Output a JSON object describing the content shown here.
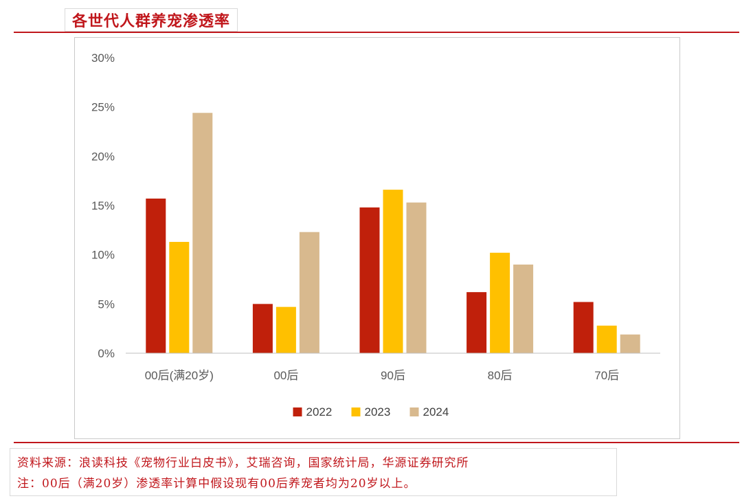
{
  "header": {
    "title": "各世代人群养宠渗透率"
  },
  "footer": {
    "source": "资料来源：浪读科技《宠物行业白皮书》，艾瑞咨询，国家统计局，华源证券研究所",
    "note": "注：00后（满20岁）渗透率计算中假设现有00后养宠者均为20岁以上。"
  },
  "chart_data": {
    "type": "bar",
    "title": "",
    "xlabel": "",
    "ylabel": "",
    "categories": [
      "00后(满20岁)",
      "00后",
      "90后",
      "80后",
      "70后"
    ],
    "series": [
      {
        "name": "2022",
        "color": "#c0200b",
        "values": [
          15.7,
          5.0,
          14.8,
          6.2,
          5.2
        ]
      },
      {
        "name": "2023",
        "color": "#ffc000",
        "values": [
          11.3,
          4.7,
          16.6,
          10.2,
          2.8
        ]
      },
      {
        "name": "2024",
        "color": "#d8b98e",
        "values": [
          24.4,
          12.3,
          15.3,
          9.0,
          1.9
        ]
      }
    ],
    "ylim": [
      0,
      30
    ],
    "yticks": [
      "0%",
      "5%",
      "10%",
      "15%",
      "20%",
      "25%",
      "30%"
    ],
    "grid": false,
    "legend": "bottom-center"
  }
}
